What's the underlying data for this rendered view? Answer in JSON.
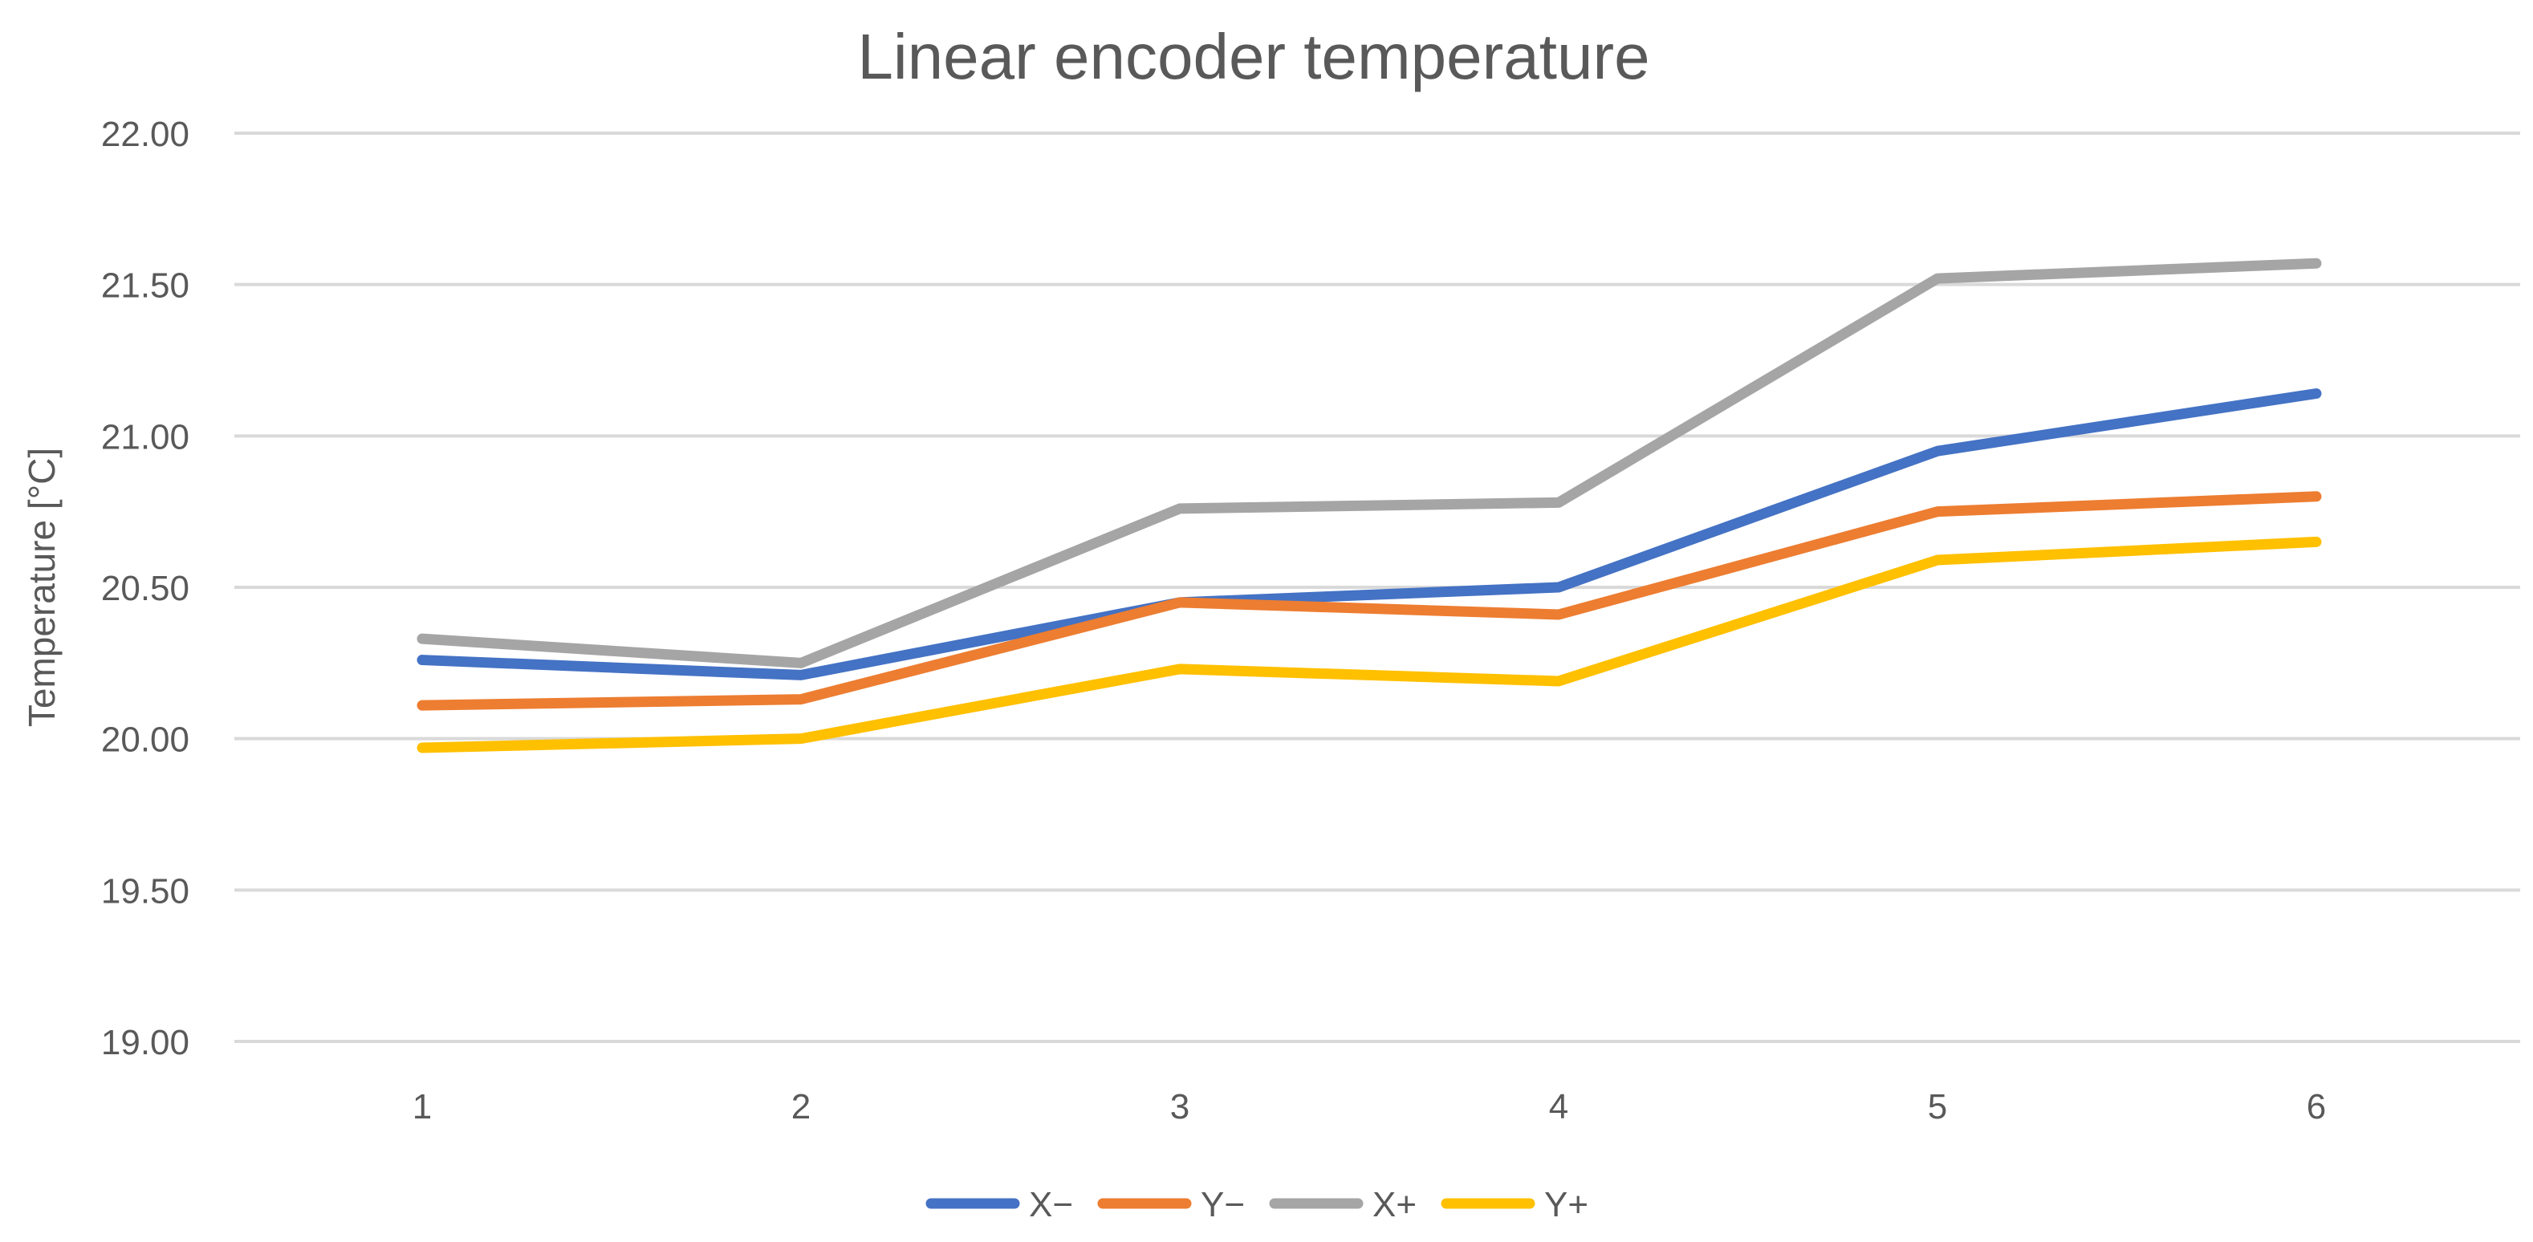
{
  "chart_data": {
    "type": "line",
    "title": "Linear encoder temperature",
    "xlabel": "",
    "ylabel": "Temperature  [°C]",
    "categories": [
      "1",
      "2",
      "3",
      "4",
      "5",
      "6"
    ],
    "ylim": [
      19.0,
      22.0
    ],
    "yticks": [
      "19.00",
      "19.50",
      "20.00",
      "20.50",
      "21.00",
      "21.50",
      "22.00"
    ],
    "grid": true,
    "legend_position": "bottom",
    "series": [
      {
        "name": "X−",
        "color": "#4472c4",
        "values": [
          20.26,
          20.21,
          20.45,
          20.5,
          20.95,
          21.14
        ]
      },
      {
        "name": "Y−",
        "color": "#ed7d31",
        "values": [
          20.11,
          20.13,
          20.45,
          20.41,
          20.75,
          20.8
        ]
      },
      {
        "name": "X+",
        "color": "#a5a5a5",
        "values": [
          20.33,
          20.25,
          20.76,
          20.78,
          21.52,
          21.57
        ]
      },
      {
        "name": "Y+",
        "color": "#ffc000",
        "values": [
          19.97,
          20.0,
          20.23,
          20.19,
          20.59,
          20.65
        ]
      }
    ]
  }
}
